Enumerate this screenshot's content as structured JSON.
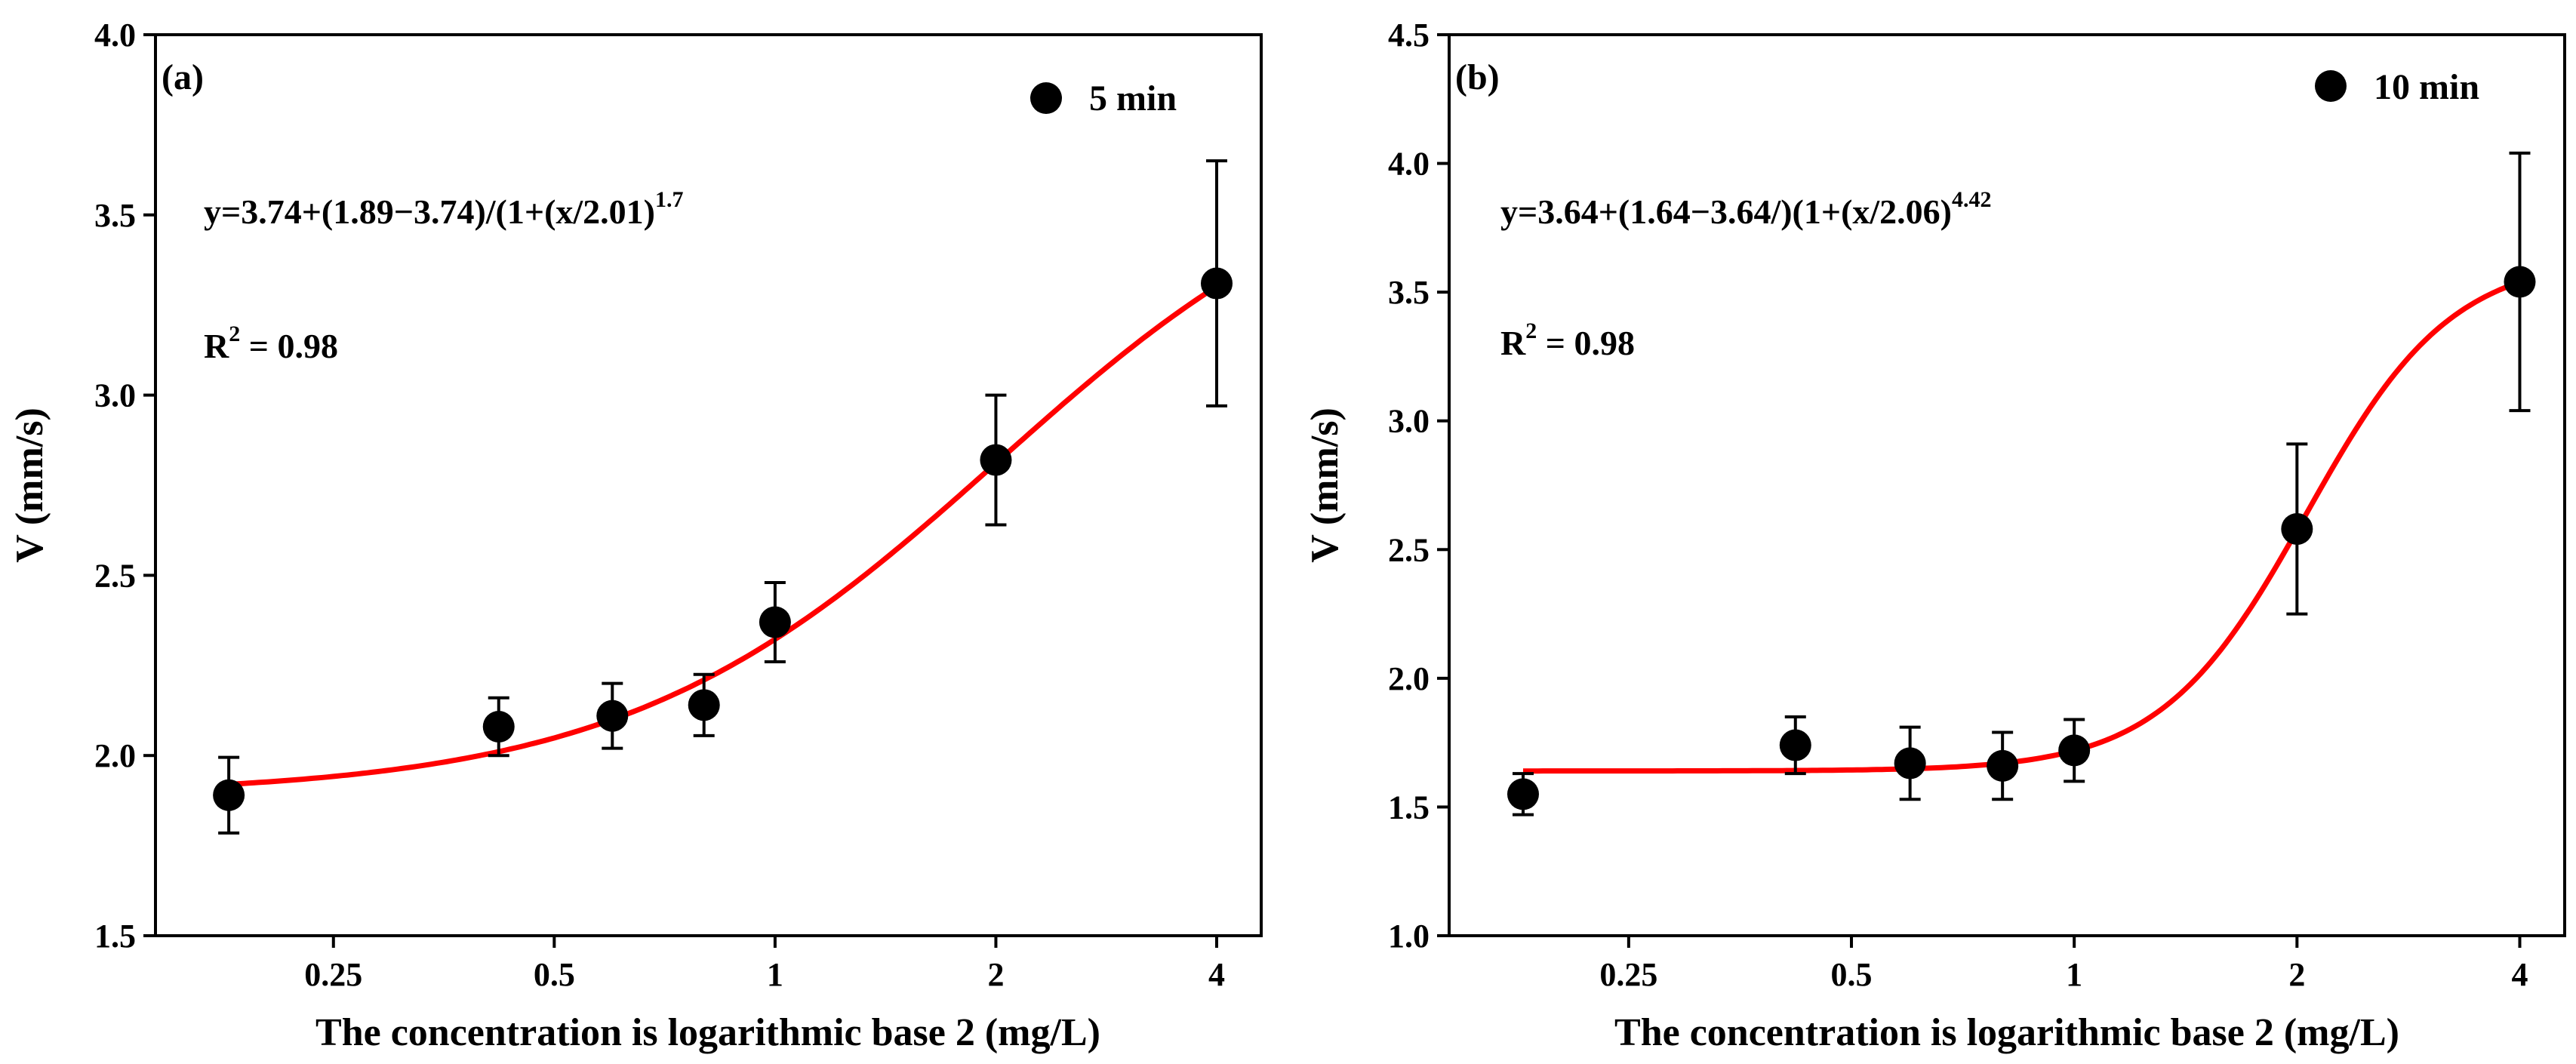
{
  "chart_data": [
    {
      "type": "scatter",
      "panel_label": "(a)",
      "legend": "5 min",
      "legend_position": "top-right",
      "equation": "y=3.74+(1.89−3.74)/(1+(x/2.01)",
      "equation_exponent": "1.7",
      "r2_prefix": "R",
      "r2_exponent": "2",
      "r2_value": " = 0.98",
      "xlabel": "The concentration is logarithmic base 2 (mg/L)",
      "ylabel": "V (mm/s)",
      "xscale": "log2",
      "xlim": [
        0.143,
        4.6
      ],
      "ylim": [
        1.5,
        4.0
      ],
      "xticks": [
        0.25,
        0.5,
        1,
        2,
        4
      ],
      "xtick_labels": [
        "0.25",
        "0.5",
        "1",
        "2",
        "4"
      ],
      "yticks": [
        1.5,
        2.0,
        2.5,
        3.0,
        3.5,
        4.0
      ],
      "ytick_labels": [
        "1.5",
        "2.0",
        "2.5",
        "3.0",
        "3.5",
        "4.0"
      ],
      "points": [
        {
          "x": 0.18,
          "y": 1.89,
          "err": 0.105
        },
        {
          "x": 0.42,
          "y": 2.08,
          "err": 0.08
        },
        {
          "x": 0.6,
          "y": 2.11,
          "err": 0.09
        },
        {
          "x": 0.8,
          "y": 2.14,
          "err": 0.085
        },
        {
          "x": 1.0,
          "y": 2.37,
          "err": 0.11
        },
        {
          "x": 2.0,
          "y": 2.82,
          "err": 0.18
        },
        {
          "x": 4.0,
          "y": 3.31,
          "err": 0.34
        }
      ],
      "fit": {
        "A1": 1.89,
        "A2": 3.74,
        "x0": 2.01,
        "p": 1.7,
        "x_from": 0.18,
        "x_to": 4.0
      },
      "fit_color": "#ff0000"
    },
    {
      "type": "scatter",
      "panel_label": "(b)",
      "legend": "10 min",
      "legend_position": "top-right",
      "equation": "y=3.64+(1.64−3.64/)(1+(x/2.06)",
      "equation_exponent": "4.42",
      "r2_prefix": "R",
      "r2_exponent": "2",
      "r2_value": " = 0.98",
      "xlabel": "The concentration is logarithmic base 2 (mg/L)",
      "ylabel": "V (mm/s)",
      "xscale": "log2",
      "xlim": [
        0.143,
        4.6
      ],
      "ylim": [
        1.0,
        4.5
      ],
      "xticks": [
        0.25,
        0.5,
        1,
        2,
        4
      ],
      "xtick_labels": [
        "0.25",
        "0.5",
        "1",
        "2",
        "4"
      ],
      "yticks": [
        1.0,
        1.5,
        2.0,
        2.5,
        3.0,
        3.5,
        4.0,
        4.5
      ],
      "ytick_labels": [
        "1.0",
        "1.5",
        "2.0",
        "2.5",
        "3.0",
        "3.5",
        "4.0",
        "4.5"
      ],
      "points": [
        {
          "x": 0.18,
          "y": 1.55,
          "err": 0.08
        },
        {
          "x": 0.42,
          "y": 1.74,
          "err": 0.11
        },
        {
          "x": 0.6,
          "y": 1.67,
          "err": 0.14
        },
        {
          "x": 0.8,
          "y": 1.66,
          "err": 0.13
        },
        {
          "x": 1.0,
          "y": 1.72,
          "err": 0.12
        },
        {
          "x": 2.0,
          "y": 2.58,
          "err": 0.33
        },
        {
          "x": 4.0,
          "y": 3.54,
          "err": 0.5
        }
      ],
      "fit": {
        "A1": 1.64,
        "A2": 3.64,
        "x0": 2.06,
        "p": 4.42,
        "x_from": 0.18,
        "x_to": 4.0
      },
      "fit_color": "#ff0000"
    }
  ]
}
